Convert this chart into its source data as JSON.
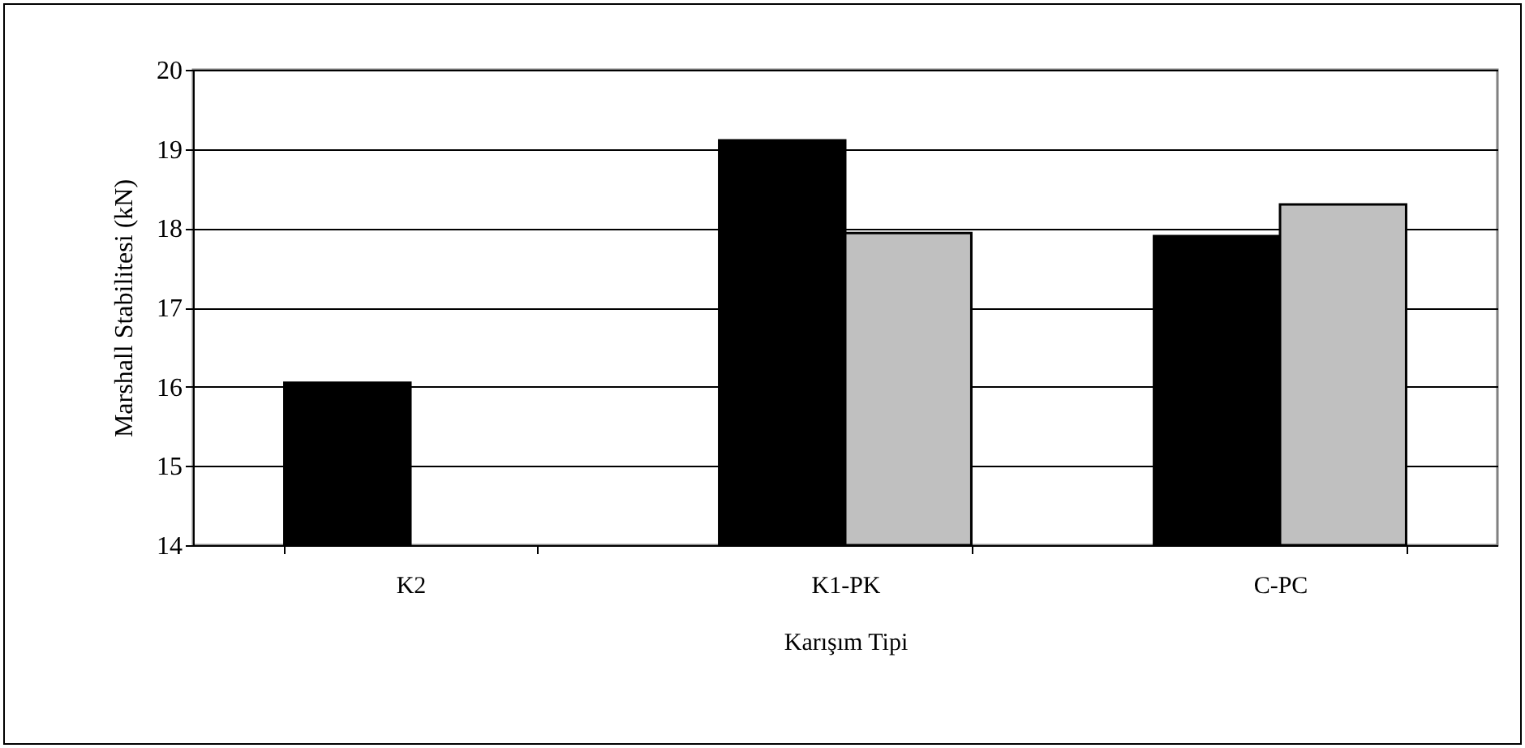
{
  "chart_data": {
    "type": "bar",
    "xlabel": "Karışım Tipi",
    "ylabel": "Marshall Stabilitesi (kN)",
    "categories": [
      "K2",
      "K1-PK",
      "C-PC"
    ],
    "series": [
      {
        "color": "#000000",
        "values": [
          16.05,
          19.11,
          17.9
        ]
      },
      {
        "color": "#c0c0c0",
        "values": [
          null,
          17.94,
          18.3
        ]
      }
    ],
    "ylim": [
      14,
      20
    ],
    "yticks": [
      14,
      15,
      16,
      17,
      18,
      19,
      20
    ],
    "grid": "y",
    "legend": false
  }
}
